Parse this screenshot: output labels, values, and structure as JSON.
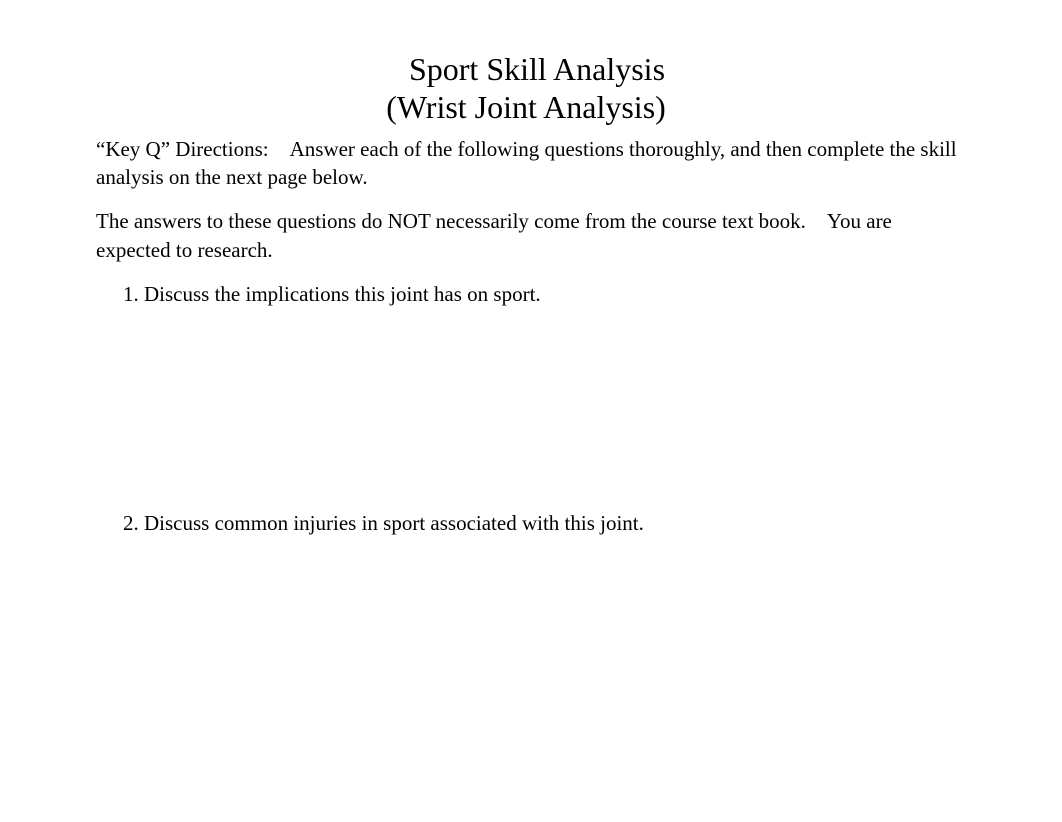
{
  "title": {
    "main": "Sport Skill Analysis",
    "sub": "(Wrist Joint Analysis)"
  },
  "directions": {
    "paragraph1": "“Key Q” Directions: Answer each of the following questions thoroughly, and then complete the skill analysis on the next page below.",
    "paragraph2": "The answers to these questions do NOT necessarily come from the course text book. You are expected to research."
  },
  "questions": {
    "items": [
      "Discuss the implications this joint has on sport.",
      "Discuss common injuries in sport associated with this joint."
    ]
  },
  "colors": {
    "background": "#ffffff",
    "text": "#000000"
  },
  "typography": {
    "font_family": "Times New Roman",
    "title_fontsize": 32,
    "body_fontsize": 21
  }
}
